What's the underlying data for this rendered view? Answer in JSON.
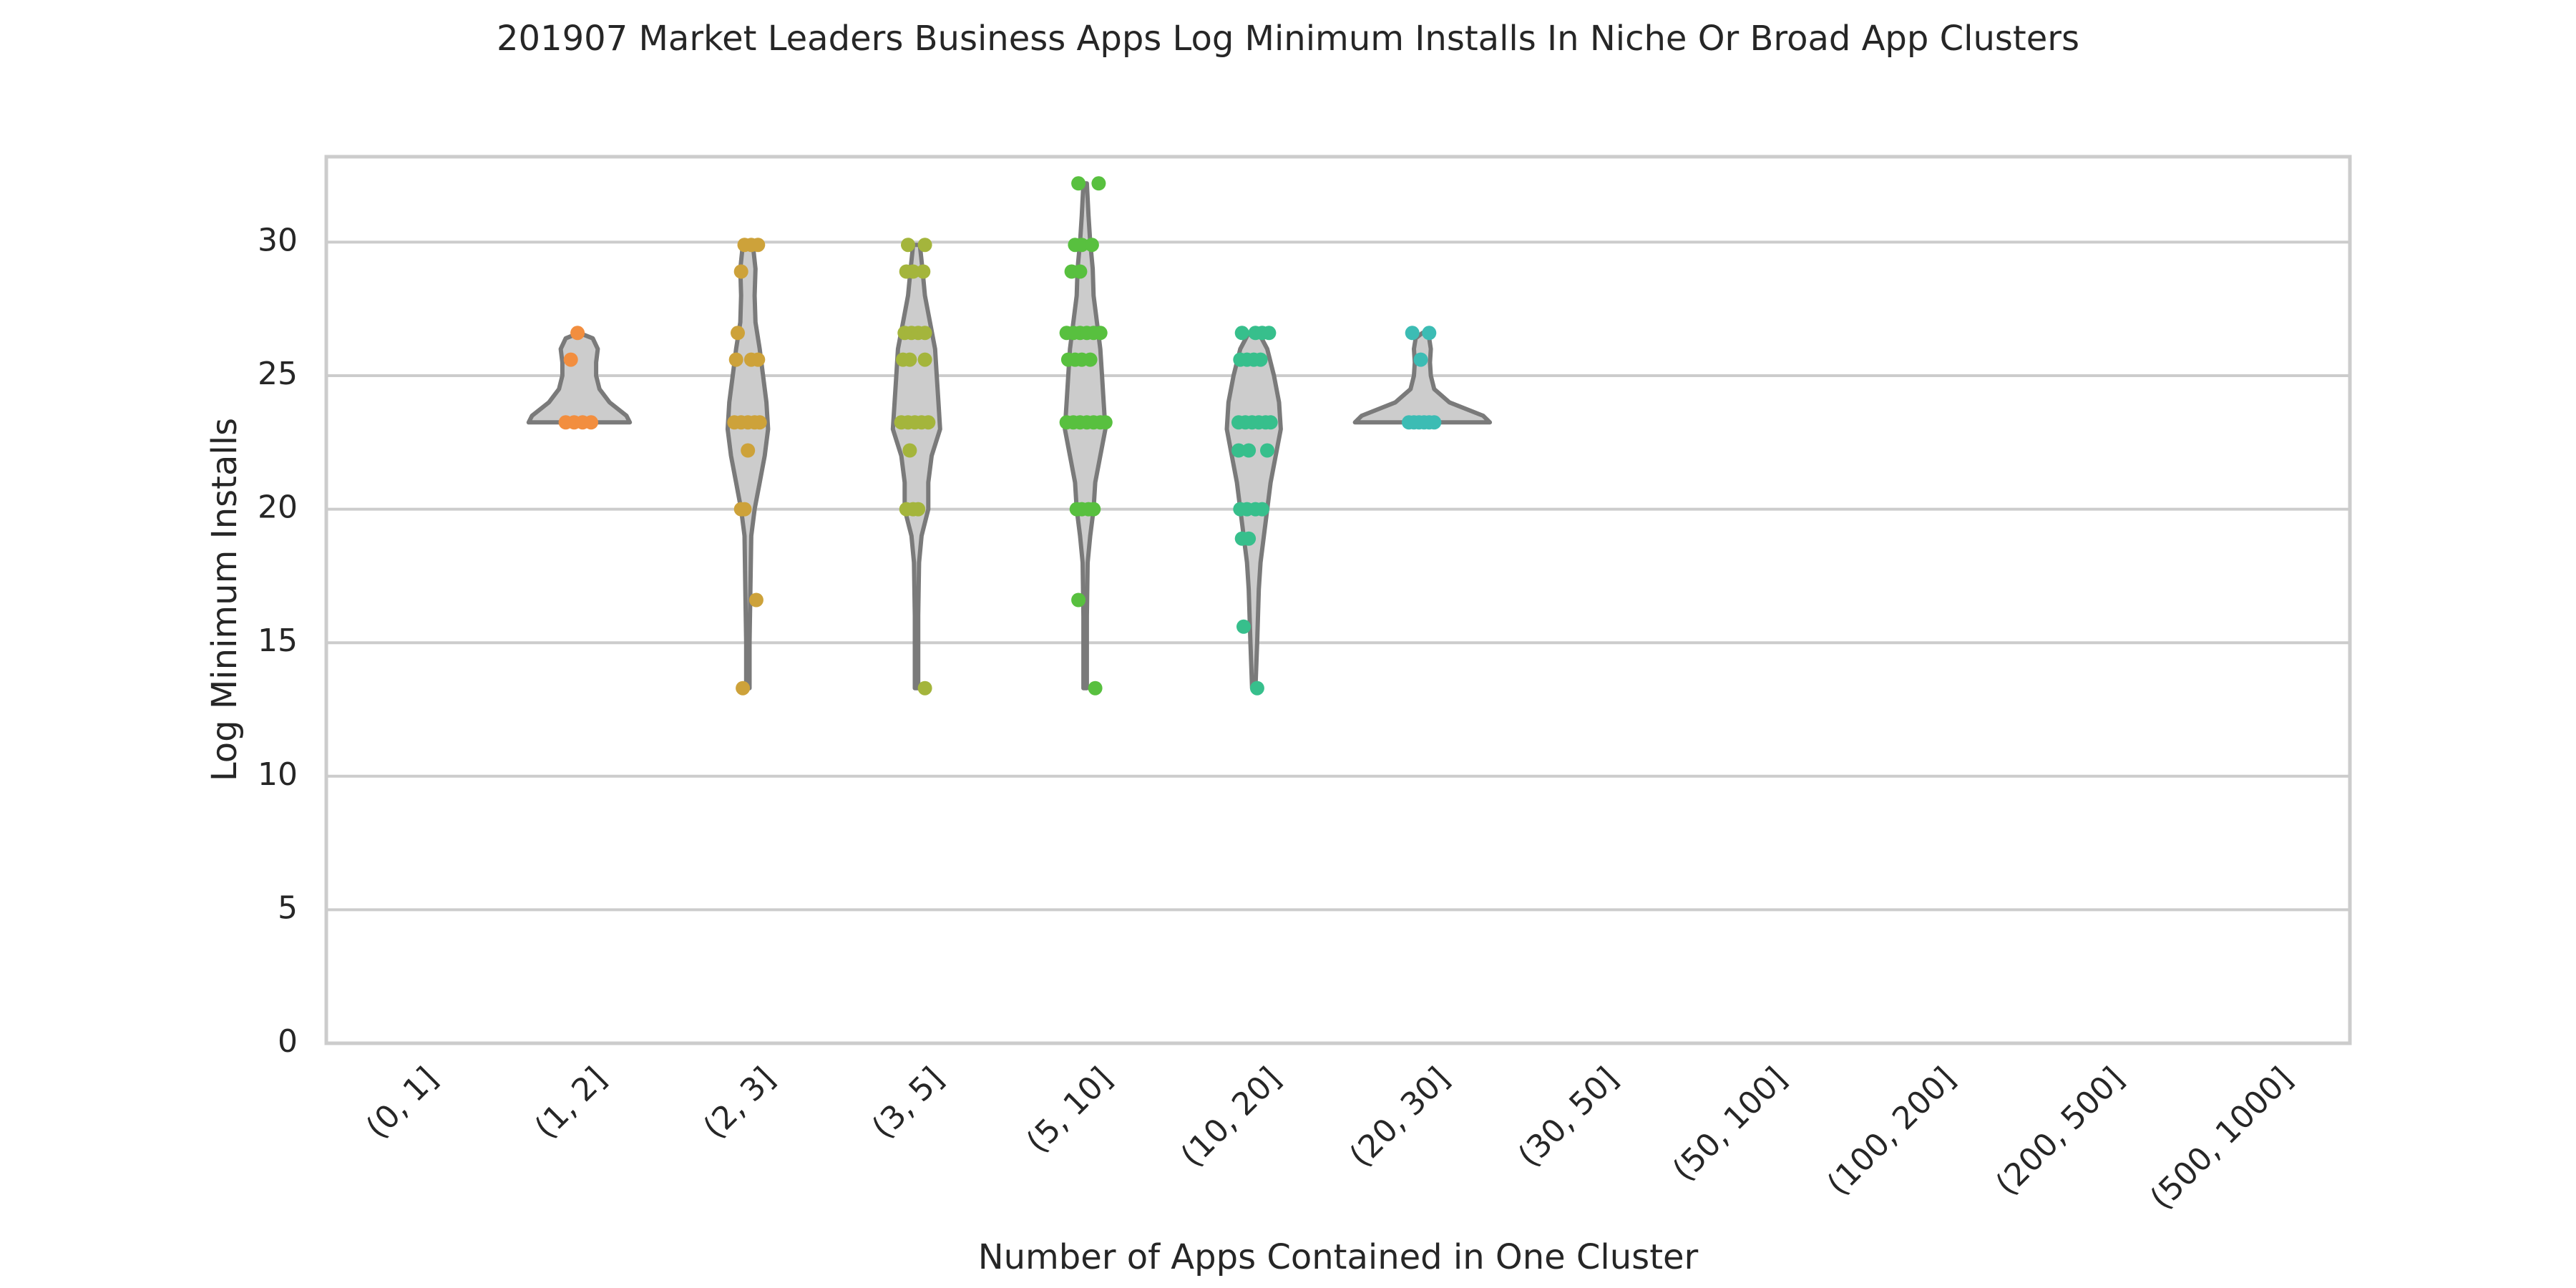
{
  "chart_data": {
    "type": "violin",
    "title": "201907 Market Leaders Business Apps Log Minimum Installs In Niche Or Broad App Clusters",
    "xlabel": "Number of Apps Contained in One Cluster",
    "ylabel": "Log Minimum Installs",
    "ylim": [
      0,
      33.2
    ],
    "yticks": [
      0,
      5,
      10,
      15,
      20,
      25,
      30
    ],
    "grid": "horizontal",
    "categories": [
      "(0, 1]",
      "(1, 2]",
      "(2, 3]",
      "(3, 5]",
      "(5, 10]",
      "(10, 20]",
      "(20, 30]",
      "(30, 50]",
      "(50, 100]",
      "(100, 200]",
      "(200, 500]",
      "(500, 1000]"
    ],
    "colors": {
      "(1, 2]": "#f28e3f",
      "(2, 3]": "#cda23a",
      "(3, 5]": "#a4b53c",
      "(5, 10]": "#58c03f",
      "(10, 20]": "#37bf8c",
      "(20, 30]": "#3cbcb4",
      "violin_fill": "#cccccc",
      "violin_edge": "#7a7a7a"
    },
    "series": [
      {
        "category": "(0, 1]",
        "points": [],
        "violin": null
      },
      {
        "category": "(1, 2]",
        "points": [
          [
            23.25,
            -0.08
          ],
          [
            23.25,
            -0.03
          ],
          [
            23.25,
            0.02
          ],
          [
            23.25,
            0.07
          ],
          [
            25.6,
            -0.05
          ],
          [
            26.6,
            -0.01
          ]
        ],
        "violin": {
          "min": 23.25,
          "max": 26.6,
          "profile": [
            [
              23.25,
              0.3
            ],
            [
              23.5,
              0.28
            ],
            [
              24.0,
              0.18
            ],
            [
              24.5,
              0.12
            ],
            [
              25.0,
              0.1
            ],
            [
              25.5,
              0.1
            ],
            [
              26.0,
              0.11
            ],
            [
              26.4,
              0.08
            ],
            [
              26.6,
              0.0
            ]
          ]
        }
      },
      {
        "category": "(2, 3]",
        "points": [
          [
            13.3,
            -0.03
          ],
          [
            16.6,
            0.05
          ],
          [
            20.0,
            -0.04
          ],
          [
            20.0,
            -0.02
          ],
          [
            22.2,
            0.0
          ],
          [
            23.25,
            -0.08
          ],
          [
            23.25,
            -0.04
          ],
          [
            23.25,
            0.0
          ],
          [
            23.25,
            0.04
          ],
          [
            23.25,
            0.07
          ],
          [
            25.6,
            -0.07
          ],
          [
            25.6,
            0.02
          ],
          [
            25.6,
            0.06
          ],
          [
            26.6,
            -0.06
          ],
          [
            28.9,
            -0.04
          ],
          [
            29.9,
            -0.02
          ],
          [
            29.9,
            0.02
          ],
          [
            29.9,
            0.06
          ]
        ],
        "violin": {
          "min": 13.3,
          "max": 29.9,
          "profile": [
            [
              13.3,
              0.01
            ],
            [
              15.0,
              0.01
            ],
            [
              17.0,
              0.015
            ],
            [
              19.0,
              0.02
            ],
            [
              20.0,
              0.04
            ],
            [
              21.0,
              0.07
            ],
            [
              22.0,
              0.1
            ],
            [
              23.0,
              0.12
            ],
            [
              24.0,
              0.11
            ],
            [
              25.0,
              0.09
            ],
            [
              26.0,
              0.07
            ],
            [
              27.0,
              0.045
            ],
            [
              28.0,
              0.04
            ],
            [
              29.0,
              0.045
            ],
            [
              29.9,
              0.03
            ]
          ]
        }
      },
      {
        "category": "(3, 5]",
        "points": [
          [
            13.3,
            0.05
          ],
          [
            20.0,
            -0.06
          ],
          [
            20.0,
            -0.02
          ],
          [
            20.0,
            0.01
          ],
          [
            22.2,
            -0.04
          ],
          [
            23.25,
            -0.09
          ],
          [
            23.25,
            -0.05
          ],
          [
            23.25,
            -0.01
          ],
          [
            23.25,
            0.03
          ],
          [
            23.25,
            0.07
          ],
          [
            25.6,
            -0.08
          ],
          [
            25.6,
            -0.04
          ],
          [
            25.6,
            0.05
          ],
          [
            26.6,
            -0.07
          ],
          [
            26.6,
            -0.03
          ],
          [
            26.6,
            0.01
          ],
          [
            26.6,
            0.05
          ],
          [
            28.9,
            -0.06
          ],
          [
            28.9,
            -0.02
          ],
          [
            28.9,
            0.04
          ],
          [
            29.9,
            -0.05
          ],
          [
            29.9,
            0.05
          ]
        ],
        "violin": {
          "min": 13.3,
          "max": 29.9,
          "profile": [
            [
              13.3,
              0.01
            ],
            [
              16.0,
              0.01
            ],
            [
              18.0,
              0.015
            ],
            [
              19.0,
              0.03
            ],
            [
              20.0,
              0.07
            ],
            [
              21.0,
              0.07
            ],
            [
              22.0,
              0.09
            ],
            [
              23.0,
              0.14
            ],
            [
              24.0,
              0.13
            ],
            [
              25.0,
              0.12
            ],
            [
              26.0,
              0.11
            ],
            [
              27.0,
              0.08
            ],
            [
              28.0,
              0.05
            ],
            [
              29.0,
              0.035
            ],
            [
              29.9,
              0.02
            ]
          ]
        }
      },
      {
        "category": "(5, 10]",
        "points": [
          [
            13.3,
            0.06
          ],
          [
            16.6,
            -0.04
          ],
          [
            20.0,
            -0.05
          ],
          [
            20.0,
            -0.02
          ],
          [
            20.0,
            0.02
          ],
          [
            20.0,
            0.05
          ],
          [
            23.25,
            -0.11
          ],
          [
            23.25,
            -0.07
          ],
          [
            23.25,
            -0.03
          ],
          [
            23.25,
            0.01
          ],
          [
            23.25,
            0.05
          ],
          [
            23.25,
            0.09
          ],
          [
            23.25,
            0.12
          ],
          [
            25.6,
            -0.1
          ],
          [
            25.6,
            -0.06
          ],
          [
            25.6,
            -0.02
          ],
          [
            25.6,
            0.03
          ],
          [
            26.6,
            -0.11
          ],
          [
            26.6,
            -0.07
          ],
          [
            26.6,
            -0.03
          ],
          [
            26.6,
            0.01
          ],
          [
            26.6,
            0.05
          ],
          [
            26.6,
            0.09
          ],
          [
            28.9,
            -0.08
          ],
          [
            28.9,
            -0.03
          ],
          [
            29.9,
            -0.06
          ],
          [
            29.9,
            -0.02
          ],
          [
            29.9,
            0.04
          ],
          [
            32.2,
            -0.04
          ],
          [
            32.2,
            0.08
          ]
        ],
        "violin": {
          "min": 13.3,
          "max": 32.2,
          "profile": [
            [
              13.3,
              0.01
            ],
            [
              16.0,
              0.01
            ],
            [
              18.0,
              0.015
            ],
            [
              19.0,
              0.03
            ],
            [
              20.0,
              0.05
            ],
            [
              21.0,
              0.06
            ],
            [
              22.0,
              0.09
            ],
            [
              23.0,
              0.12
            ],
            [
              24.0,
              0.11
            ],
            [
              25.0,
              0.1
            ],
            [
              26.0,
              0.09
            ],
            [
              27.0,
              0.07
            ],
            [
              28.0,
              0.05
            ],
            [
              29.0,
              0.045
            ],
            [
              30.0,
              0.03
            ],
            [
              31.0,
              0.02
            ],
            [
              32.2,
              0.01
            ]
          ]
        }
      },
      {
        "category": "(10, 20]",
        "points": [
          [
            13.3,
            0.02
          ],
          [
            15.6,
            -0.06
          ],
          [
            18.9,
            -0.07
          ],
          [
            18.9,
            -0.03
          ],
          [
            20.0,
            -0.08
          ],
          [
            20.0,
            -0.04
          ],
          [
            20.0,
            0.01
          ],
          [
            20.0,
            0.05
          ],
          [
            22.2,
            -0.09
          ],
          [
            22.2,
            -0.03
          ],
          [
            22.2,
            0.08
          ],
          [
            23.25,
            -0.09
          ],
          [
            23.25,
            -0.05
          ],
          [
            23.25,
            -0.01
          ],
          [
            23.25,
            0.03
          ],
          [
            23.25,
            0.07
          ],
          [
            23.25,
            0.1
          ],
          [
            25.6,
            -0.08
          ],
          [
            25.6,
            -0.04
          ],
          [
            25.6,
            0.0
          ],
          [
            25.6,
            0.04
          ],
          [
            26.6,
            -0.07
          ],
          [
            26.6,
            0.01
          ],
          [
            26.6,
            0.05
          ],
          [
            26.6,
            0.09
          ]
        ],
        "violin": {
          "min": 13.3,
          "max": 26.6,
          "profile": [
            [
              13.3,
              0.01
            ],
            [
              15.0,
              0.02
            ],
            [
              17.0,
              0.03
            ],
            [
              18.0,
              0.04
            ],
            [
              19.0,
              0.06
            ],
            [
              20.0,
              0.08
            ],
            [
              21.0,
              0.1
            ],
            [
              22.0,
              0.13
            ],
            [
              23.0,
              0.16
            ],
            [
              24.0,
              0.15
            ],
            [
              25.0,
              0.12
            ],
            [
              26.0,
              0.08
            ],
            [
              26.6,
              0.03
            ]
          ]
        }
      },
      {
        "category": "(20, 30]",
        "points": [
          [
            23.25,
            -0.08
          ],
          [
            23.25,
            -0.05
          ],
          [
            23.25,
            -0.02
          ],
          [
            23.25,
            0.01
          ],
          [
            23.25,
            0.04
          ],
          [
            23.25,
            0.07
          ],
          [
            25.6,
            -0.01
          ],
          [
            26.6,
            -0.06
          ],
          [
            26.6,
            0.04
          ]
        ],
        "violin": {
          "min": 23.25,
          "max": 26.6,
          "profile": [
            [
              23.25,
              0.4
            ],
            [
              23.5,
              0.36
            ],
            [
              24.0,
              0.16
            ],
            [
              24.5,
              0.07
            ],
            [
              25.0,
              0.05
            ],
            [
              25.5,
              0.045
            ],
            [
              26.0,
              0.05
            ],
            [
              26.4,
              0.04
            ],
            [
              26.6,
              0.0
            ]
          ]
        }
      },
      {
        "category": "(30, 50]",
        "points": [],
        "violin": null
      },
      {
        "category": "(50, 100]",
        "points": [],
        "violin": null
      },
      {
        "category": "(100, 200]",
        "points": [],
        "violin": null
      },
      {
        "category": "(200, 500]",
        "points": [],
        "violin": null
      },
      {
        "category": "(500, 1000]",
        "points": [],
        "violin": null
      }
    ]
  }
}
